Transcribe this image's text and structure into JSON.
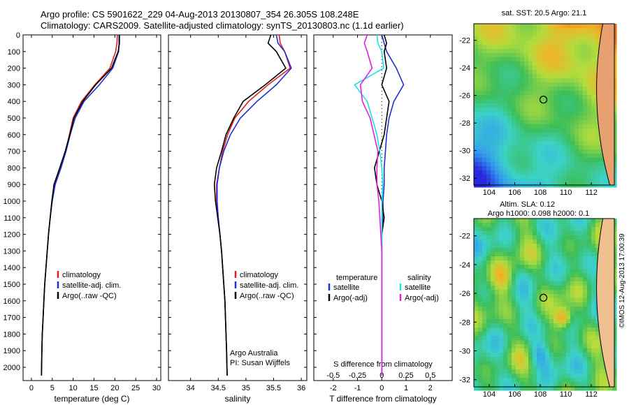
{
  "header": {
    "line1": "Argo profile: CS 5901622_229 04-Aug-2013 20130807_354 26.305S 108.248E",
    "line2": "Climatology: CARS2009. Satellite-adjusted climatology: synTS_20130803.nc (1.1d earlier)"
  },
  "side_text": "©IMOS 12-Aug-2013 17:00:39",
  "colors": {
    "climatology": "#e02020",
    "satellite": "#1f2fd6",
    "argo": "#000000",
    "s_satellite": "#20e0e0",
    "s_argo": "#e020e0"
  },
  "chart_data": [
    {
      "type": "line",
      "xlabel": "temperature (deg C)",
      "ylabel": "",
      "xlim": [
        -2,
        31
      ],
      "ylim": [
        2080,
        0
      ],
      "xticks": [
        "0",
        "5",
        "10",
        "15",
        "20",
        "25",
        "30"
      ],
      "yticks": [
        "0",
        "100",
        "200",
        "300",
        "400",
        "500",
        "600",
        "700",
        "800",
        "900",
        "1000",
        "1100",
        "1200",
        "1300",
        "1400",
        "1500",
        "1600",
        "1700",
        "1800",
        "1900",
        "2000"
      ],
      "legend_position": "lower-center",
      "series": [
        {
          "name": "climatology",
          "color_key": "climatology",
          "x": [
            20.6,
            20.5,
            20.2,
            18.8,
            15.2,
            12.0,
            10.0,
            9.1,
            8.2,
            7.0,
            5.6,
            4.9,
            4.5,
            4.1,
            3.8,
            3.5,
            3.2,
            3.0,
            2.8,
            2.6,
            2.5,
            2.4
          ],
          "y": [
            0,
            50,
            100,
            200,
            300,
            400,
            500,
            600,
            700,
            800,
            900,
            1000,
            1100,
            1200,
            1300,
            1400,
            1500,
            1600,
            1700,
            1800,
            1900,
            2050
          ]
        },
        {
          "name": "satellite-adj. clim.",
          "color_key": "satellite",
          "x": [
            21.0,
            21.0,
            20.9,
            19.5,
            16.3,
            12.6,
            10.5,
            9.3,
            8.3,
            7.1,
            5.7,
            5.0,
            4.5,
            4.1,
            3.8,
            3.5,
            3.2,
            3.0,
            2.8,
            2.6,
            2.5,
            2.4
          ],
          "y": [
            0,
            50,
            100,
            200,
            300,
            400,
            500,
            600,
            700,
            800,
            900,
            1000,
            1100,
            1200,
            1300,
            1400,
            1500,
            1600,
            1700,
            1800,
            1900,
            2050
          ]
        },
        {
          "name": "Argo(..raw -QC)",
          "color_key": "argo",
          "x": [
            21.1,
            21.1,
            20.8,
            19.2,
            15.4,
            12.3,
            10.2,
            9.2,
            8.1,
            6.8,
            5.4,
            4.9,
            4.5,
            4.1,
            3.8,
            3.5,
            3.2,
            3.0,
            2.8,
            2.6,
            2.5,
            2.4
          ],
          "y": [
            0,
            50,
            100,
            200,
            300,
            400,
            500,
            600,
            700,
            800,
            900,
            1000,
            1100,
            1200,
            1300,
            1400,
            1500,
            1600,
            1700,
            1800,
            1900,
            2050
          ]
        }
      ]
    },
    {
      "type": "line",
      "xlabel": "salinity",
      "ylabel": "",
      "xlim": [
        33.6,
        36.1
      ],
      "ylim": [
        2080,
        0
      ],
      "xticks": [
        "34",
        "34.5",
        "35",
        "35.5",
        "36"
      ],
      "legend_position": "lower-center",
      "annotations": [
        "Argo Australia",
        "PI: Susan Wijffels"
      ],
      "series": [
        {
          "name": "climatology",
          "color_key": "climatology",
          "x": [
            35.6,
            35.62,
            35.7,
            35.8,
            35.4,
            35.05,
            34.8,
            34.67,
            34.58,
            34.52,
            34.47,
            34.47,
            34.5,
            34.53,
            34.56,
            34.58,
            34.6,
            34.62,
            34.63,
            34.64,
            34.65,
            34.66
          ],
          "y": [
            0,
            50,
            100,
            200,
            300,
            400,
            500,
            600,
            700,
            800,
            900,
            1000,
            1100,
            1200,
            1300,
            1400,
            1500,
            1600,
            1700,
            1800,
            1900,
            2050
          ]
        },
        {
          "name": "satellite-adj. clim.",
          "color_key": "satellite",
          "x": [
            35.55,
            35.58,
            35.7,
            35.82,
            35.55,
            35.2,
            34.9,
            34.72,
            34.6,
            34.52,
            34.48,
            34.48,
            34.5,
            34.53,
            34.56,
            34.58,
            34.6,
            34.62,
            34.63,
            34.64,
            34.65,
            34.66
          ],
          "y": [
            0,
            50,
            100,
            200,
            300,
            400,
            500,
            600,
            700,
            800,
            900,
            1000,
            1100,
            1200,
            1300,
            1400,
            1500,
            1600,
            1700,
            1800,
            1900,
            2050
          ]
        },
        {
          "name": "Argo(..raw -QC)",
          "color_key": "argo",
          "x": [
            35.45,
            35.4,
            35.55,
            35.72,
            35.35,
            34.95,
            34.78,
            34.64,
            34.56,
            34.47,
            34.43,
            34.45,
            34.49,
            34.53,
            34.56,
            34.58,
            34.6,
            34.62,
            34.63,
            34.64,
            34.65,
            34.66
          ],
          "y": [
            0,
            50,
            100,
            200,
            300,
            400,
            500,
            600,
            700,
            800,
            900,
            1000,
            1100,
            1200,
            1300,
            1400,
            1500,
            1600,
            1700,
            1800,
            1900,
            2050
          ]
        }
      ]
    },
    {
      "type": "line",
      "xlabel": "T difference from climatology",
      "xlabel_top": "S difference from climatology",
      "xlim": [
        -2.8,
        2.9
      ],
      "ylim": [
        2080,
        0
      ],
      "xticks": [
        "-2",
        "-1",
        "0",
        "1",
        "2"
      ],
      "xticks_s": [
        "-0.5",
        "-0.25",
        "0",
        "0.25",
        "0.5"
      ],
      "legend_position": "lower-center",
      "legend_headers": [
        "temperature",
        "salinity"
      ],
      "series": [
        {
          "name": "satellite",
          "group": "temperature",
          "color_key": "satellite",
          "x": [
            0.0,
            0.1,
            0.2,
            0.6,
            0.9,
            0.5,
            0.3,
            0.2,
            0.15,
            0.1,
            0.1,
            0.05,
            0.05,
            0.0,
            0.0,
            0.0,
            0.0,
            0.0,
            0.0,
            0.0,
            0.0,
            0.0
          ],
          "y": [
            0,
            50,
            100,
            200,
            300,
            400,
            500,
            600,
            700,
            800,
            900,
            1000,
            1100,
            1200,
            1300,
            1400,
            1500,
            1600,
            1700,
            1800,
            1900,
            2050
          ]
        },
        {
          "name": "Argo(-adj)",
          "group": "temperature",
          "color_key": "argo",
          "x": [
            0.1,
            0.2,
            0.1,
            0.2,
            0.0,
            0.3,
            0.2,
            0.1,
            -0.1,
            -0.3,
            -0.2,
            0.0,
            0.1,
            0.0,
            0.0,
            0.0,
            0.0,
            0.0,
            0.0,
            0.0,
            0.0,
            0.0
          ],
          "y": [
            0,
            50,
            100,
            200,
            300,
            400,
            500,
            600,
            700,
            800,
            900,
            1000,
            1100,
            1200,
            1300,
            1400,
            1500,
            1600,
            1700,
            1800,
            1900,
            2050
          ]
        },
        {
          "name": "satellite",
          "group": "salinity",
          "color_key": "s_satellite",
          "x": [
            -0.05,
            -0.04,
            0.0,
            0.02,
            -0.28,
            -0.15,
            -0.1,
            -0.05,
            -0.02,
            0.0,
            0.01,
            0.0,
            0.0,
            0.0,
            0.0,
            0.0,
            0.0,
            0.0,
            0.0,
            0.0,
            0.0,
            0.0
          ],
          "y": [
            0,
            50,
            100,
            200,
            300,
            400,
            500,
            600,
            700,
            800,
            900,
            1000,
            1100,
            1200,
            1300,
            1400,
            1500,
            1600,
            1700,
            1800,
            1900,
            2050
          ]
        },
        {
          "name": "Argo(-adj)",
          "group": "salinity",
          "color_key": "s_argo",
          "x": [
            -0.15,
            -0.18,
            -0.15,
            -0.1,
            -0.22,
            -0.2,
            -0.12,
            -0.08,
            -0.04,
            -0.05,
            -0.05,
            -0.03,
            -0.02,
            -0.01,
            0.0,
            0.0,
            0.0,
            0.0,
            0.0,
            0.0,
            0.0,
            0.0
          ],
          "y": [
            0,
            50,
            100,
            200,
            300,
            400,
            500,
            600,
            700,
            800,
            900,
            1000,
            1100,
            1200,
            1300,
            1400,
            1500,
            1600,
            1700,
            1800,
            1900,
            2050
          ]
        }
      ]
    },
    {
      "type": "heatmap",
      "title": "sat. SST: 20.5  Argo: 21.1",
      "xlim": [
        102.8,
        113.8
      ],
      "ylim": [
        -32.5,
        -20.8
      ],
      "xticks": [
        "104",
        "106",
        "108",
        "110",
        "112"
      ],
      "yticks": [
        "-22",
        "-24",
        "-26",
        "-28",
        "-30",
        "-32"
      ],
      "marker": {
        "lon": 108.248,
        "lat": -26.305
      }
    },
    {
      "type": "heatmap",
      "title": "Altim. SLA: 0.12",
      "subtitle": "Argo h1000: 0.098 h2000: 0.1",
      "xlim": [
        102.8,
        113.8
      ],
      "ylim": [
        -32.5,
        -20.8
      ],
      "xticks": [
        "104",
        "106",
        "108",
        "110",
        "112"
      ],
      "yticks": [
        "-22",
        "-24",
        "-26",
        "-28",
        "-30",
        "-32"
      ],
      "marker": {
        "lon": 108.248,
        "lat": -26.305
      }
    }
  ]
}
